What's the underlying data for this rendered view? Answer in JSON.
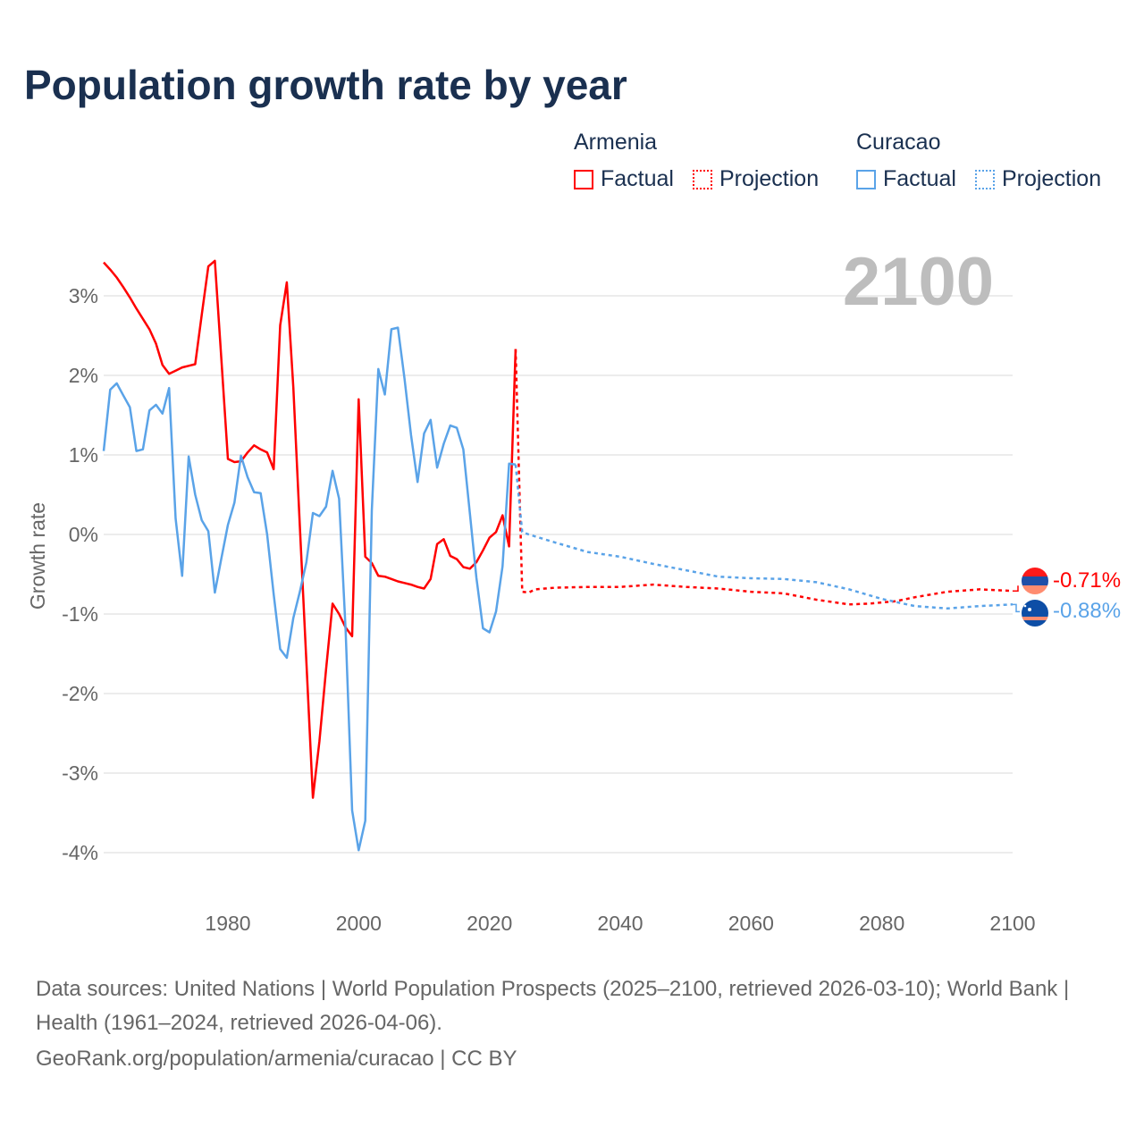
{
  "title": "Population growth rate by year",
  "current_year": "2100",
  "legend": {
    "groups": [
      {
        "name": "Armenia",
        "factual": "Factual",
        "projection": "Projection",
        "color": "#ff0000"
      },
      {
        "name": "Curacao",
        "factual": "Factual",
        "projection": "Projection",
        "color": "#5aa3e8"
      }
    ]
  },
  "end_labels": {
    "armenia": "-0.71%",
    "curacao": "-0.88%"
  },
  "footer": {
    "sources": "Data sources: United Nations | World Population Prospects (2025–2100, retrieved 2026-03-10); World Bank | Health (1961–2024, retrieved 2026-04-06).",
    "credit": "GeoRank.org/population/armenia/curacao | CC BY"
  },
  "chart_data": {
    "type": "line",
    "title": "Population growth rate by year",
    "xlabel": "",
    "ylabel": "Growth rate",
    "xlim": [
      1961,
      2100
    ],
    "ylim": [
      -4,
      3
    ],
    "x_ticks": [
      1980,
      2000,
      2020,
      2040,
      2060,
      2080,
      2100
    ],
    "y_ticks": [
      3,
      2,
      1,
      0,
      -1,
      -2,
      -3,
      -4
    ],
    "y_tick_labels": [
      "3%",
      "2%",
      "1%",
      "0%",
      "-1%",
      "-2%",
      "-3%",
      "-4%"
    ],
    "grid": true,
    "legend_position": "top-right",
    "series": [
      {
        "name": "Armenia Factual",
        "color": "#ff0000",
        "style": "solid",
        "start_year": 1961,
        "values": [
          3.42,
          3.33,
          3.23,
          3.11,
          2.98,
          2.84,
          2.71,
          2.58,
          2.4,
          2.13,
          2.02,
          2.06,
          2.1,
          2.12,
          2.14,
          2.76,
          3.37,
          3.44,
          2.2,
          0.95,
          0.91,
          0.92,
          1.03,
          1.12,
          1.07,
          1.03,
          0.82,
          2.63,
          3.17,
          1.85,
          0.1,
          -1.6,
          -3.31,
          -2.6,
          -1.7,
          -0.87,
          -1.0,
          -1.17,
          -1.28,
          1.7,
          -0.28,
          -0.36,
          -0.52,
          -0.53,
          -0.56,
          -0.59,
          -0.61,
          -0.63,
          -0.66,
          -0.68,
          -0.56,
          -0.12,
          -0.06,
          -0.27,
          -0.31,
          -0.41,
          -0.43,
          -0.35,
          -0.2,
          -0.04,
          0.03,
          0.24,
          -0.15,
          2.33
        ]
      },
      {
        "name": "Armenia Projection",
        "color": "#ff0000",
        "style": "dashed",
        "years": [
          2024,
          2025,
          2026,
          2027,
          2030,
          2035,
          2040,
          2045,
          2050,
          2055,
          2060,
          2065,
          2070,
          2075,
          2078,
          2082,
          2085,
          2090,
          2095,
          2100
        ],
        "values": [
          2.33,
          -0.72,
          -0.73,
          -0.69,
          -0.67,
          -0.66,
          -0.66,
          -0.63,
          -0.66,
          -0.68,
          -0.72,
          -0.74,
          -0.82,
          -0.88,
          -0.87,
          -0.84,
          -0.79,
          -0.72,
          -0.69,
          -0.71
        ]
      },
      {
        "name": "Curacao Factual",
        "color": "#5aa3e8",
        "style": "solid",
        "start_year": 1961,
        "values": [
          1.05,
          1.82,
          1.9,
          1.75,
          1.6,
          1.05,
          1.07,
          1.56,
          1.63,
          1.52,
          1.84,
          0.2,
          -0.52,
          0.98,
          0.5,
          0.18,
          0.04,
          -0.73,
          -0.3,
          0.12,
          0.4,
          0.99,
          0.72,
          0.53,
          0.52,
          0.0,
          -0.75,
          -1.44,
          -1.55,
          -1.05,
          -0.72,
          -0.35,
          0.27,
          0.23,
          0.35,
          0.8,
          0.45,
          -1.2,
          -3.47,
          -3.97,
          -3.6,
          0.3,
          2.08,
          1.76,
          2.58,
          2.6,
          1.96,
          1.25,
          0.66,
          1.27,
          1.44,
          0.84,
          1.14,
          1.37,
          1.34,
          1.07,
          0.27,
          -0.54,
          -1.18,
          -1.23,
          -0.97,
          -0.4,
          0.89,
          0.88
        ]
      },
      {
        "name": "Curacao Projection",
        "color": "#5aa3e8",
        "style": "dashed",
        "years": [
          2024,
          2025,
          2026,
          2030,
          2035,
          2040,
          2045,
          2050,
          2055,
          2060,
          2065,
          2070,
          2075,
          2080,
          2085,
          2090,
          2095,
          2100
        ],
        "values": [
          0.88,
          0.03,
          0.0,
          -0.1,
          -0.22,
          -0.28,
          -0.37,
          -0.45,
          -0.53,
          -0.55,
          -0.56,
          -0.6,
          -0.69,
          -0.81,
          -0.9,
          -0.93,
          -0.9,
          -0.88
        ]
      }
    ]
  }
}
